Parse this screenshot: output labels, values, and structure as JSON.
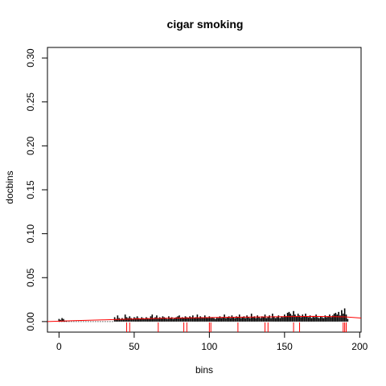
{
  "chart_data": {
    "type": "bar",
    "title": "cigar smoking",
    "xlabel": "bins",
    "ylabel": "docbins",
    "xlim": [
      -7.7,
      200.9
    ],
    "ylim": [
      -0.012,
      0.312
    ],
    "x_ticks": [
      0,
      50,
      100,
      150,
      200
    ],
    "x_tick_labels": [
      "0",
      "50",
      "100",
      "150",
      "200"
    ],
    "y_ticks": [
      0.0,
      0.05,
      0.1,
      0.15,
      0.2,
      0.25,
      0.3
    ],
    "y_tick_labels": [
      "0.00",
      "0.05",
      "0.10",
      "0.15",
      "0.20",
      "0.25",
      "0.30"
    ],
    "grid": false,
    "bar_color": "#000000",
    "bars": {
      "x_start": 0,
      "values": [
        0.003,
        0.002,
        0.004,
        0.003,
        0.001,
        0.001,
        0.0,
        0.0,
        0.0,
        0.0,
        0.0,
        0.0,
        0.0,
        0.0,
        0.0,
        0.0,
        0.0,
        0.0,
        0.0,
        0.0,
        0.0,
        0.0,
        0.0,
        0.0,
        0.0,
        0.0,
        0.0,
        0.0,
        0.0,
        0.0,
        0.0,
        0.0,
        0.0,
        0.0,
        0.0,
        0.0,
        0.0,
        0.005,
        0.003,
        0.007,
        0.004,
        0.003,
        0.004,
        0.003,
        0.008,
        0.005,
        0.004,
        0.006,
        0.004,
        0.003,
        0.005,
        0.004,
        0.006,
        0.004,
        0.003,
        0.005,
        0.004,
        0.003,
        0.005,
        0.004,
        0.003,
        0.006,
        0.008,
        0.004,
        0.005,
        0.007,
        0.004,
        0.005,
        0.004,
        0.006,
        0.005,
        0.004,
        0.003,
        0.006,
        0.004,
        0.005,
        0.003,
        0.004,
        0.005,
        0.006,
        0.007,
        0.004,
        0.005,
        0.004,
        0.006,
        0.005,
        0.004,
        0.006,
        0.005,
        0.007,
        0.004,
        0.005,
        0.008,
        0.004,
        0.006,
        0.005,
        0.004,
        0.007,
        0.005,
        0.004,
        0.006,
        0.004,
        0.005,
        0.004,
        0.003,
        0.005,
        0.004,
        0.006,
        0.004,
        0.005,
        0.008,
        0.004,
        0.005,
        0.006,
        0.004,
        0.007,
        0.005,
        0.004,
        0.006,
        0.005,
        0.008,
        0.004,
        0.005,
        0.006,
        0.004,
        0.007,
        0.005,
        0.004,
        0.009,
        0.005,
        0.006,
        0.004,
        0.007,
        0.005,
        0.004,
        0.006,
        0.005,
        0.008,
        0.004,
        0.005,
        0.007,
        0.004,
        0.009,
        0.006,
        0.004,
        0.005,
        0.007,
        0.004,
        0.006,
        0.005,
        0.008,
        0.006,
        0.01,
        0.011,
        0.009,
        0.007,
        0.012,
        0.008,
        0.006,
        0.009,
        0.007,
        0.005,
        0.008,
        0.006,
        0.009,
        0.006,
        0.005,
        0.007,
        0.004,
        0.006,
        0.005,
        0.008,
        0.005,
        0.004,
        0.006,
        0.005,
        0.004,
        0.007,
        0.005,
        0.006,
        0.008,
        0.005,
        0.007,
        0.009,
        0.01,
        0.008,
        0.011,
        0.007,
        0.013,
        0.009,
        0.015,
        0.008,
        0.003
      ]
    },
    "baseline": {
      "from": 0,
      "to": 36,
      "value": 0.0,
      "style": "dotted"
    },
    "trend_line": {
      "color": "#ff0000",
      "x": [
        -7.7,
        10,
        30,
        50,
        70,
        90,
        110,
        130,
        150,
        170,
        190,
        200.9
      ],
      "y": [
        0.0,
        0.001,
        0.002,
        0.003,
        0.0037,
        0.0043,
        0.0048,
        0.0052,
        0.0056,
        0.0059,
        0.0054,
        0.004
      ]
    },
    "rug": {
      "color": "#ff0000",
      "x": [
        45,
        47,
        66,
        83,
        85,
        100,
        101,
        119,
        137,
        139,
        156,
        160,
        189,
        190,
        191
      ]
    }
  }
}
